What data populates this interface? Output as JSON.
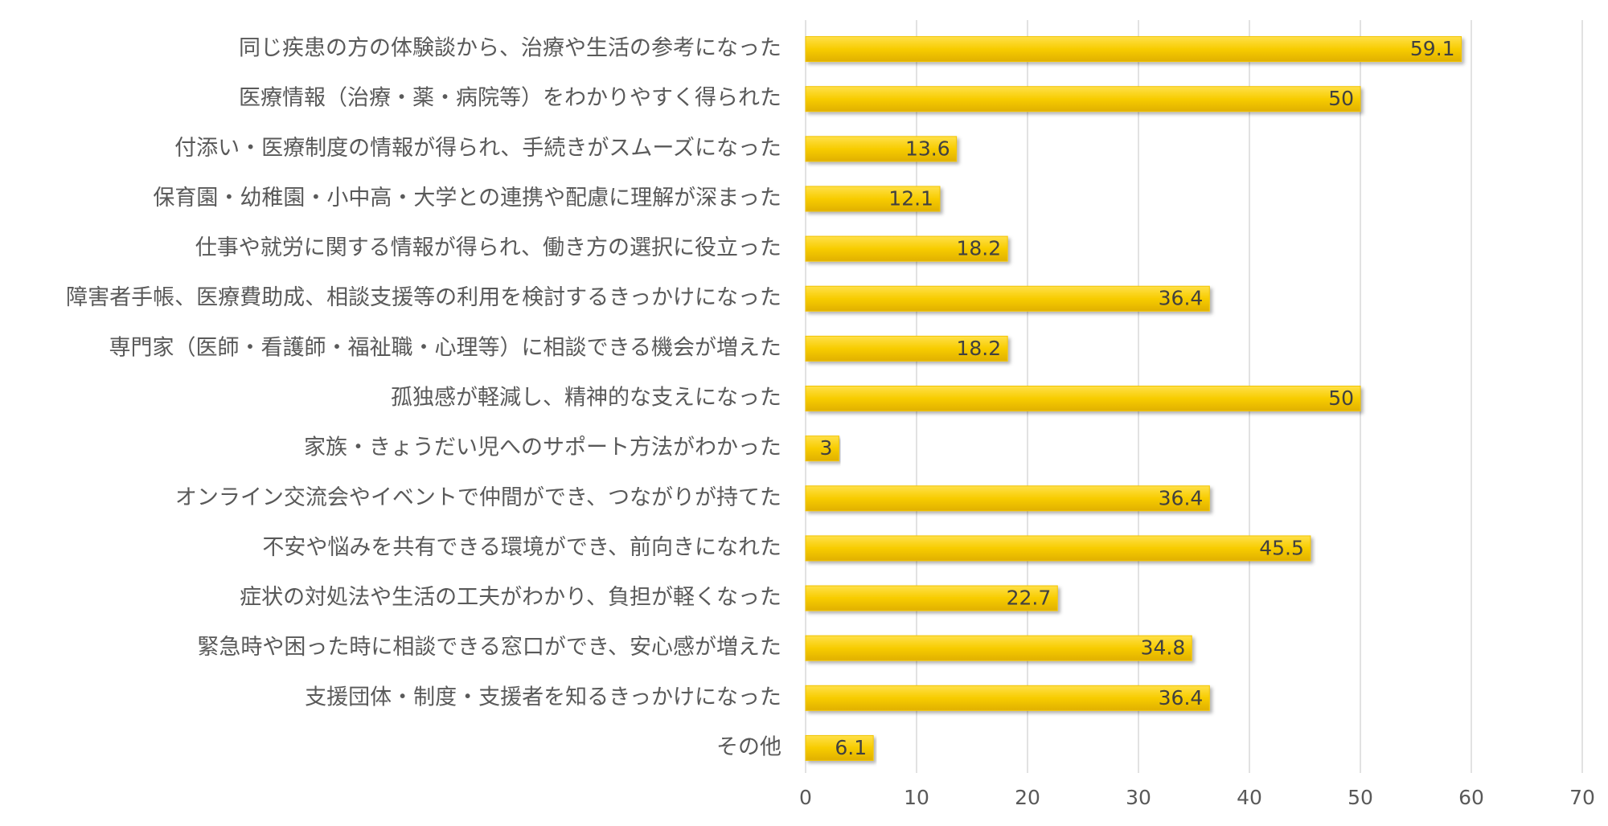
{
  "chart_data": {
    "type": "bar",
    "orientation": "horizontal",
    "categories": [
      "同じ疾患の方の体験談から、治療や生活の参考になった",
      "医療情報（治療・薬・病院等）をわかりやすく得られた",
      "付添い・医療制度の情報が得られ、手続きがスムーズになった",
      "保育園・幼稚園・小中高・大学との連携や配慮に理解が深まった",
      "仕事や就労に関する情報が得られ、働き方の選択に役立った",
      "障害者手帳、医療費助成、相談支援等の利用を検討するきっかけになった",
      "専門家（医師・看護師・福祉職・心理等）に相談できる機会が増えた",
      "孤独感が軽減し、精神的な支えになった",
      "家族・きょうだい児へのサポート方法がわかった",
      "オンライン交流会やイベントで仲間ができ、つながりが持てた",
      "不安や悩みを共有できる環境ができ、前向きになれた",
      "症状の対処法や生活の工夫がわかり、負担が軽くなった",
      "緊急時や困った時に相談できる窓口ができ、安心感が増えた",
      "支援団体・制度・支援者を知るきっかけになった",
      "その他"
    ],
    "values": [
      59.1,
      50,
      13.6,
      12.1,
      18.2,
      36.4,
      18.2,
      50,
      3,
      36.4,
      45.5,
      22.7,
      34.8,
      36.4,
      6.1
    ],
    "color": "#f2c400",
    "xlim": [
      0,
      70
    ],
    "xticks": [
      0,
      10,
      20,
      30,
      40,
      50,
      60,
      70
    ],
    "grid": true
  }
}
